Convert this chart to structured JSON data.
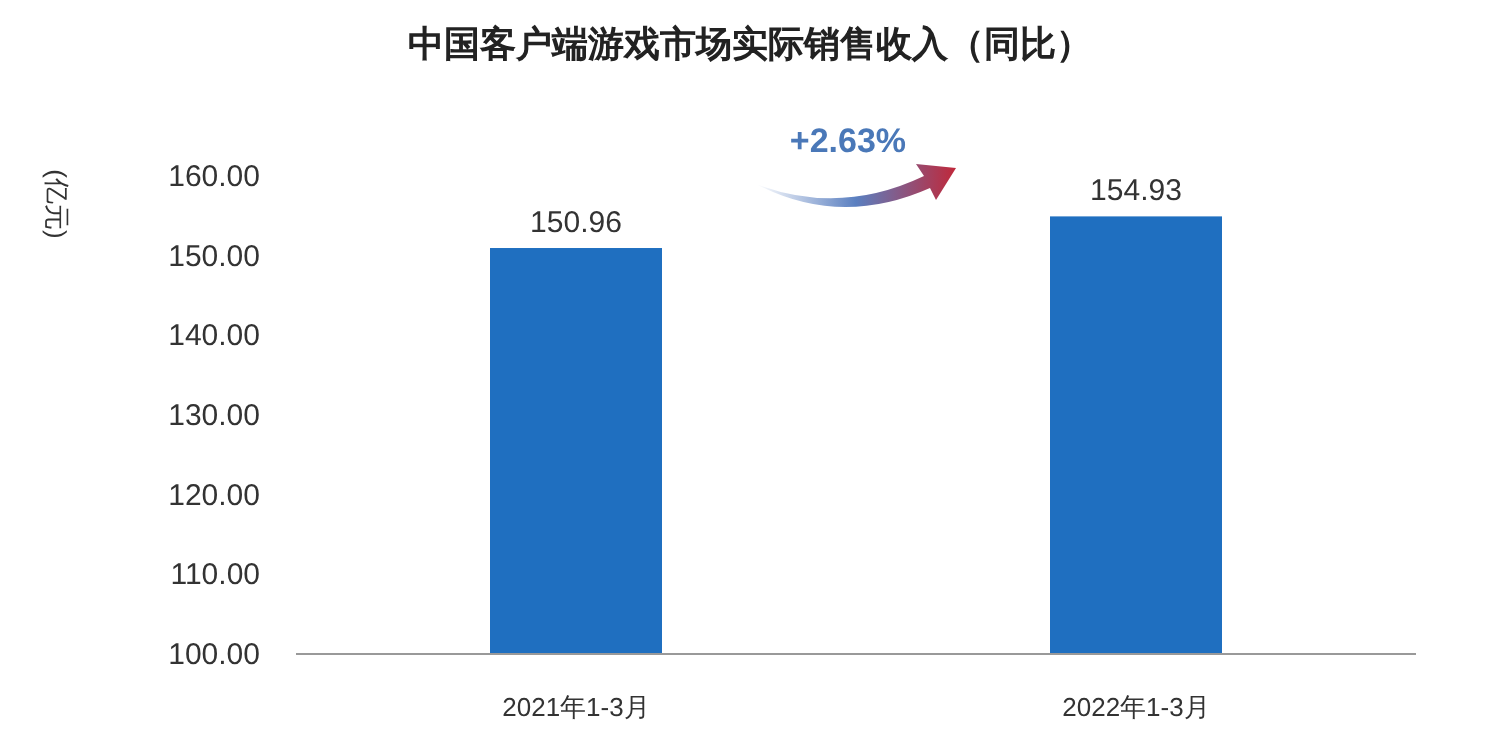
{
  "chart_data": {
    "type": "bar",
    "title": "中国客户端游戏市场实际销售收入（同比）",
    "ylabel": "(亿元)",
    "categories": [
      "2021年1-3月",
      "2022年1-3月"
    ],
    "values": [
      150.96,
      154.93
    ],
    "color": "#1f6fc0",
    "ylim": [
      100,
      160
    ],
    "yticks": [
      {
        "value": 100,
        "label": "100.00"
      },
      {
        "value": 110,
        "label": "110.00"
      },
      {
        "value": 120,
        "label": "120.00"
      },
      {
        "value": 130,
        "label": "130.00"
      },
      {
        "value": 140,
        "label": "140.00"
      },
      {
        "value": 150,
        "label": "150.00"
      },
      {
        "value": 160,
        "label": "160.00"
      }
    ],
    "data_labels": true,
    "annotations": [
      "+2.63%"
    ]
  }
}
